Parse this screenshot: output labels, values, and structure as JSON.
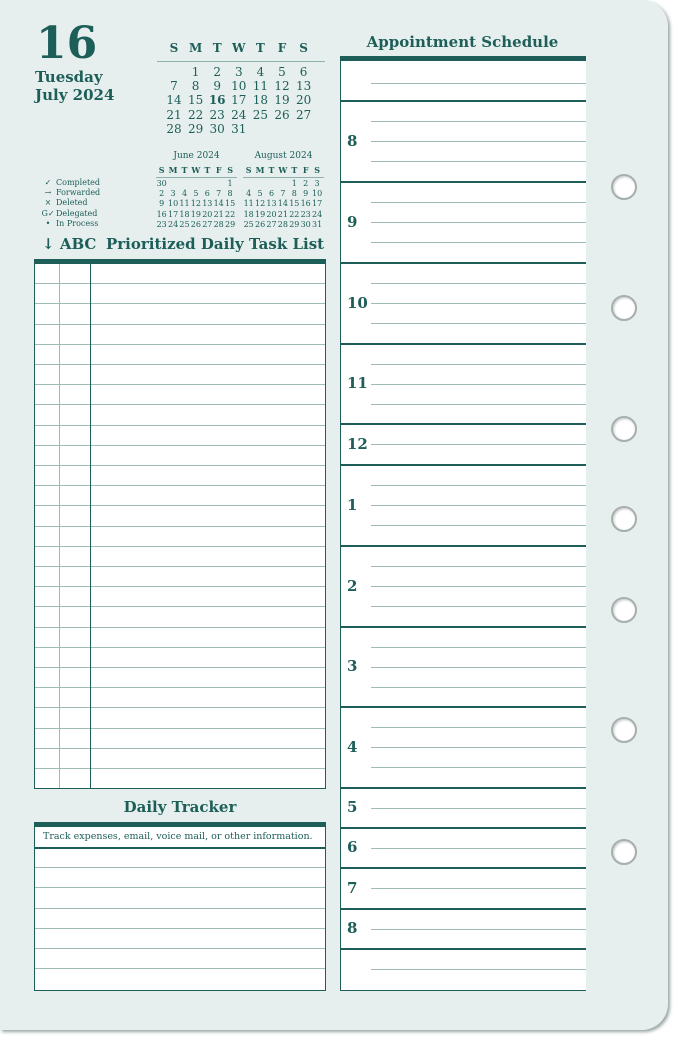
{
  "date": {
    "day": "16",
    "weekday": "Tuesday",
    "month_year": "July 2024"
  },
  "month_calendar": {
    "weekday_headers": [
      "S",
      "M",
      "T",
      "W",
      "T",
      "F",
      "S"
    ],
    "weeks": [
      [
        "",
        "1",
        "2",
        "3",
        "4",
        "5",
        "6"
      ],
      [
        "7",
        "8",
        "9",
        "10",
        "11",
        "12",
        "13"
      ],
      [
        "14",
        "15",
        "16",
        "17",
        "18",
        "19",
        "20"
      ],
      [
        "21",
        "22",
        "23",
        "24",
        "25",
        "26",
        "27"
      ],
      [
        "28",
        "29",
        "30",
        "31",
        "",
        "",
        ""
      ]
    ],
    "highlighted_day": "16"
  },
  "mini_calendars": [
    {
      "title": "June 2024",
      "weekday_headers": [
        "S",
        "M",
        "T",
        "W",
        "T",
        "F",
        "S"
      ],
      "weeks": [
        [
          "30",
          "",
          "",
          "",
          "",
          "",
          "1"
        ],
        [
          "2",
          "3",
          "4",
          "5",
          "6",
          "7",
          "8"
        ],
        [
          "9",
          "10",
          "11",
          "12",
          "13",
          "14",
          "15"
        ],
        [
          "16",
          "17",
          "18",
          "19",
          "20",
          "21",
          "22"
        ],
        [
          "23",
          "24",
          "25",
          "26",
          "27",
          "28",
          "29"
        ]
      ]
    },
    {
      "title": "August 2024",
      "weekday_headers": [
        "S",
        "M",
        "T",
        "W",
        "T",
        "F",
        "S"
      ],
      "weeks": [
        [
          "",
          "",
          "",
          "",
          "1",
          "2",
          "3"
        ],
        [
          "4",
          "5",
          "6",
          "7",
          "8",
          "9",
          "10"
        ],
        [
          "11",
          "12",
          "13",
          "14",
          "15",
          "16",
          "17"
        ],
        [
          "18",
          "19",
          "20",
          "21",
          "22",
          "23",
          "24"
        ],
        [
          "25",
          "26",
          "27",
          "28",
          "29",
          "30",
          "31"
        ]
      ]
    }
  ],
  "legend": [
    {
      "symbol": "✓",
      "label": "Completed"
    },
    {
      "symbol": "→",
      "label": "Forwarded"
    },
    {
      "symbol": "×",
      "label": "Deleted"
    },
    {
      "symbol": "G✓",
      "label": "Delegated"
    },
    {
      "symbol": "•",
      "label": "In Process"
    }
  ],
  "task_list": {
    "arrow": "↓",
    "priority_label": "ABC",
    "title": "Prioritized Daily Task List"
  },
  "tracker": {
    "title": "Daily Tracker",
    "instruction": "Track expenses, email, voice mail, or other information."
  },
  "schedule": {
    "title": "Appointment Schedule",
    "hours": [
      "",
      "8",
      "9",
      "10",
      "11",
      "12",
      "1",
      "2",
      "3",
      "4",
      "5",
      "6",
      "7",
      "8",
      ""
    ]
  },
  "colors": {
    "ink": "#1d5e58",
    "paper": "#e6efee",
    "rule": "#9fbbb8"
  }
}
